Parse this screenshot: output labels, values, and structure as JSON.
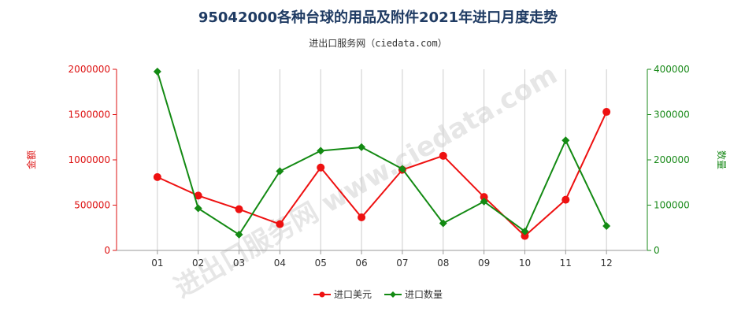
{
  "title": "95042000各种台球的用品及附件2021年进口月度走势",
  "subtitle": "进出口服务网（ciedata.com）",
  "watermark": "进出口服务网 www.ciedata.com",
  "chart_data": {
    "type": "line",
    "categories": [
      "01",
      "02",
      "03",
      "04",
      "05",
      "06",
      "07",
      "08",
      "09",
      "10",
      "11",
      "12"
    ],
    "left_axis": {
      "label": "金额",
      "ticks": [
        "0",
        "500000",
        "1000000",
        "1500000",
        "2000000"
      ],
      "range": [
        0,
        2000000
      ],
      "color": "#dd1111"
    },
    "right_axis": {
      "label": "数量",
      "ticks": [
        "0",
        "100000",
        "200000",
        "300000",
        "400000"
      ],
      "range": [
        0,
        400000
      ],
      "color": "#1a8a1a"
    },
    "series": [
      {
        "name": "进口美元",
        "axis": "left",
        "color": "#ee1111",
        "values": [
          810000,
          605000,
          455000,
          290000,
          915000,
          365000,
          890000,
          1045000,
          590000,
          160000,
          560000,
          1530000
        ]
      },
      {
        "name": "进口数量",
        "axis": "right",
        "color": "#138a13",
        "values": [
          395000,
          93000,
          35000,
          175000,
          220000,
          228000,
          180000,
          60000,
          108000,
          42000,
          243000,
          54000
        ]
      }
    ],
    "grid": "vertical",
    "legend_position": "bottom"
  }
}
